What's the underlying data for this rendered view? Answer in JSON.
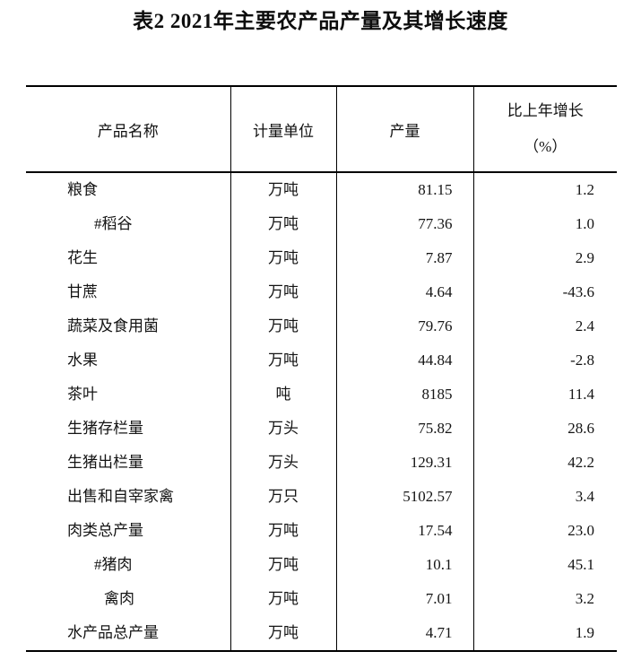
{
  "page": {
    "title": "表2 2021年主要农产品产量及其增长速度"
  },
  "colors": {
    "background": "#ffffff",
    "text": "#111111",
    "border": "#000000"
  },
  "chart_data": {
    "type": "table",
    "title": "表2 2021年主要农产品产量及其增长速度",
    "columns": [
      "产品名称",
      "计量单位",
      "产量",
      "比上年增长（%）"
    ],
    "rows": [
      [
        "粮食",
        "万吨",
        "81.15",
        "1.2"
      ],
      [
        "#稻谷",
        "万吨",
        "77.36",
        "1.0"
      ],
      [
        "花生",
        "万吨",
        "7.87",
        "2.9"
      ],
      [
        "甘蔗",
        "万吨",
        "4.64",
        "-43.6"
      ],
      [
        "蔬菜及食用菌",
        "万吨",
        "79.76",
        "2.4"
      ],
      [
        "水果",
        "万吨",
        "44.84",
        "-2.8"
      ],
      [
        "茶叶",
        "吨",
        "8185",
        "11.4"
      ],
      [
        "生猪存栏量",
        "万头",
        "75.82",
        "28.6"
      ],
      [
        "生猪出栏量",
        "万头",
        "129.31",
        "42.2"
      ],
      [
        "出售和自宰家禽",
        "万只",
        "5102.57",
        "3.4"
      ],
      [
        "肉类总产量",
        "万吨",
        "17.54",
        "23.0"
      ],
      [
        "#猪肉",
        "万吨",
        "10.1",
        "45.1"
      ],
      [
        "禽肉",
        "万吨",
        "7.01",
        "3.2"
      ],
      [
        "水产品总产量",
        "万吨",
        "4.71",
        "1.9"
      ]
    ]
  },
  "table": {
    "headers": {
      "product": "产品名称",
      "unit": "计量单位",
      "output": "产量",
      "growth_line1": "比上年增长",
      "growth_line2": "（%）"
    },
    "rows": [
      {
        "name": "粮食",
        "unit": "万吨",
        "output": "81.15",
        "growth": "1.2"
      },
      {
        "name": "#稻谷",
        "unit": "万吨",
        "output": "77.36",
        "growth": "1.0"
      },
      {
        "name": "花生",
        "unit": "万吨",
        "output": "7.87",
        "growth": "2.9"
      },
      {
        "name": "甘蔗",
        "unit": "万吨",
        "output": "4.64",
        "growth": "-43.6"
      },
      {
        "name": "蔬菜及食用菌",
        "unit": "万吨",
        "output": "79.76",
        "growth": "2.4"
      },
      {
        "name": "水果",
        "unit": "万吨",
        "output": "44.84",
        "growth": "-2.8"
      },
      {
        "name": "茶叶",
        "unit": "吨",
        "output": "8185",
        "growth": "11.4"
      },
      {
        "name": "生猪存栏量",
        "unit": "万头",
        "output": "75.82",
        "growth": "28.6"
      },
      {
        "name": "生猪出栏量",
        "unit": "万头",
        "output": "129.31",
        "growth": "42.2"
      },
      {
        "name": "出售和自宰家禽",
        "unit": "万只",
        "output": "5102.57",
        "growth": "3.4"
      },
      {
        "name": "肉类总产量",
        "unit": "万吨",
        "output": "17.54",
        "growth": "23.0"
      },
      {
        "name": "#猪肉",
        "unit": "万吨",
        "output": "10.1",
        "growth": "45.1"
      },
      {
        "name": "禽肉",
        "unit": "万吨",
        "output": "7.01",
        "growth": "3.2"
      },
      {
        "name": "水产品总产量",
        "unit": "万吨",
        "output": "4.71",
        "growth": "1.9"
      }
    ]
  }
}
